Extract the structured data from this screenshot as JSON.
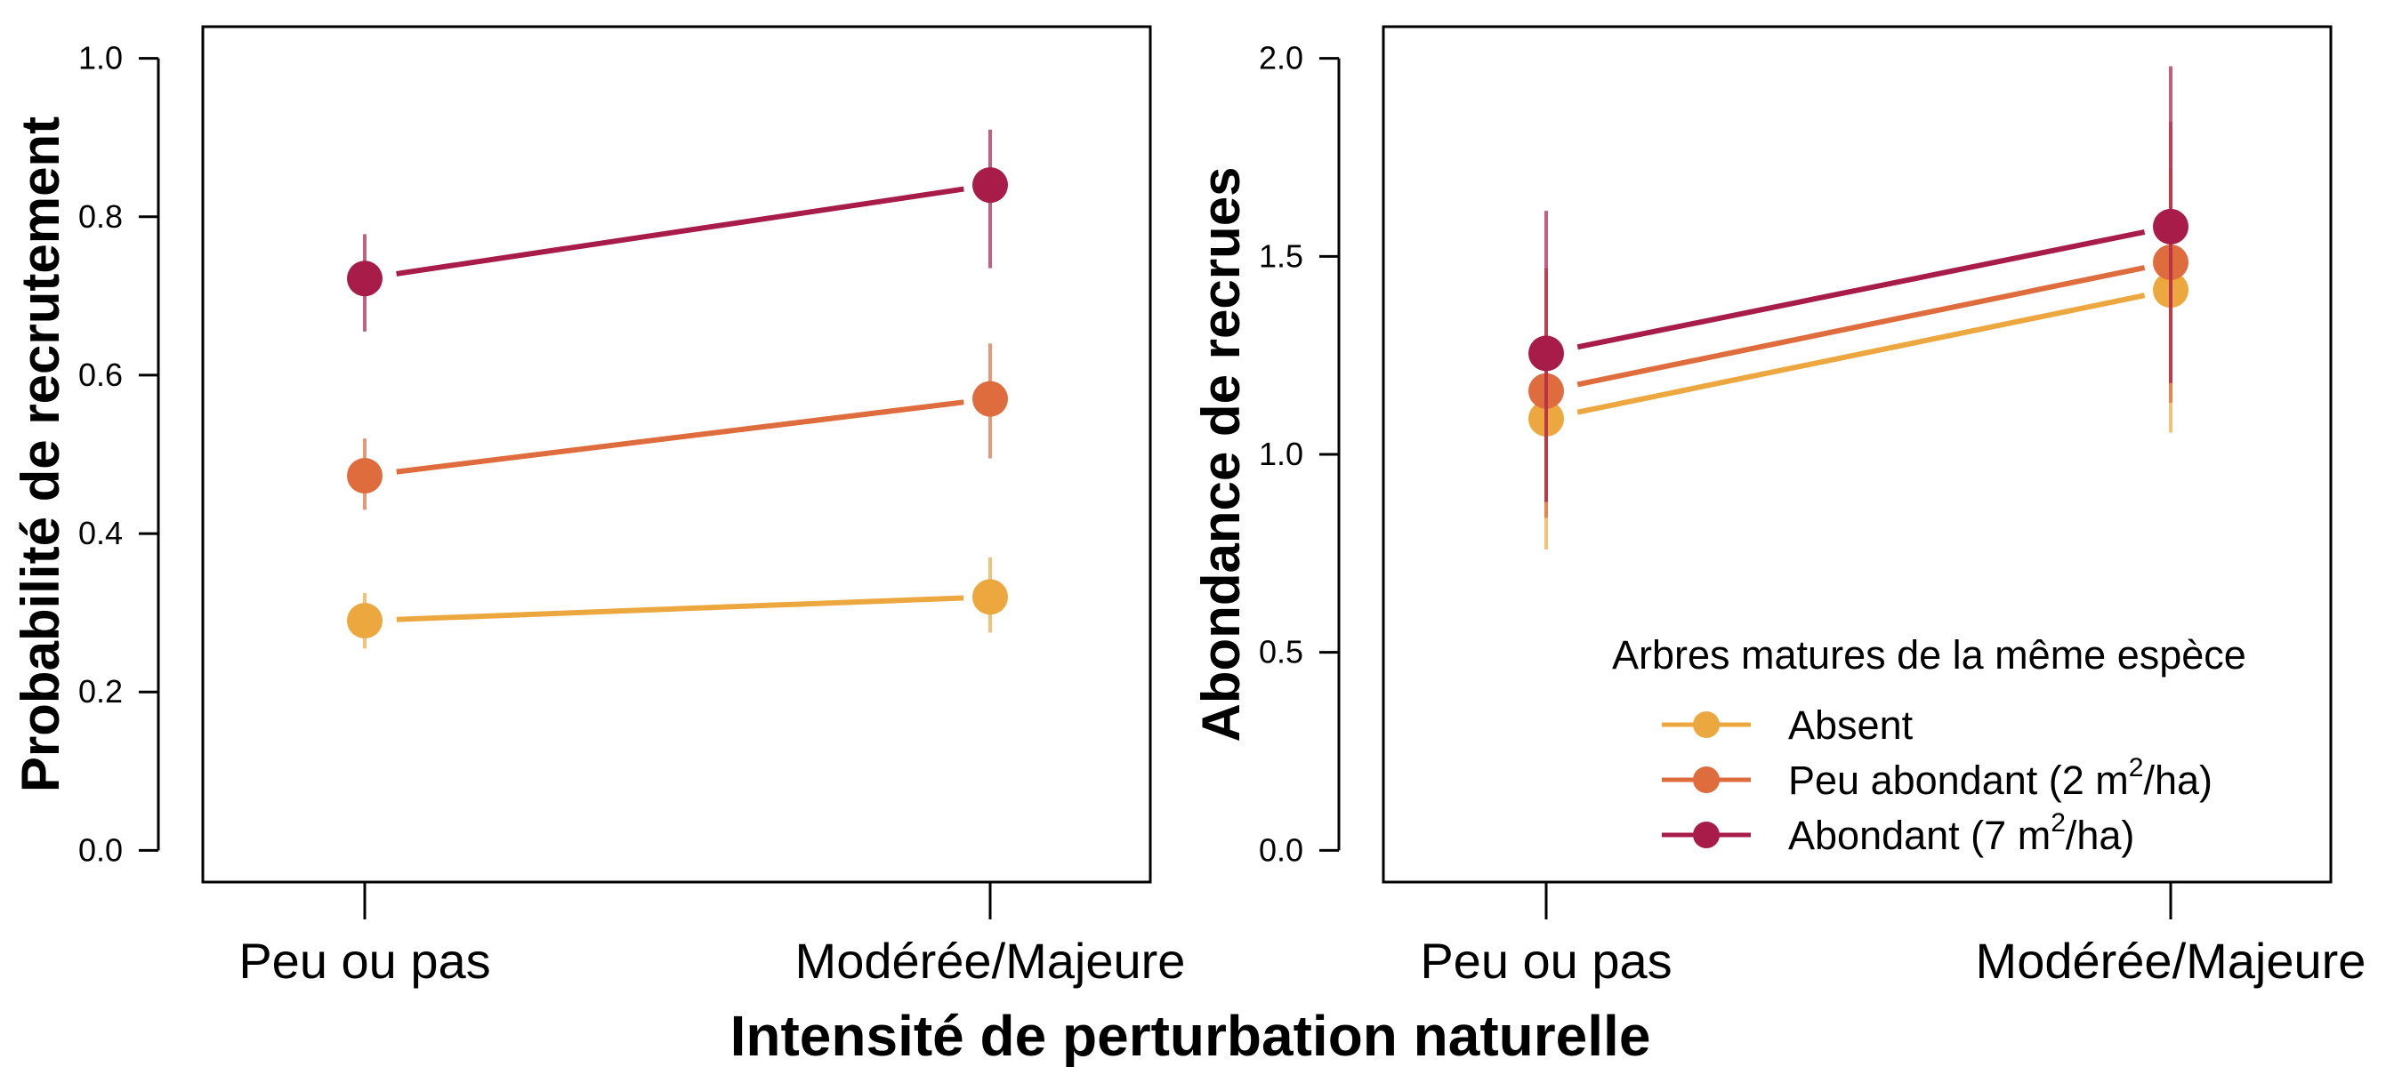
{
  "xlabel": "Intensité de perturbation naturelle",
  "legend": {
    "title": "Arbres matures de la même espèce",
    "placement": "bottom-right of right panel",
    "items": [
      {
        "key": "absent",
        "text": "Absent",
        "sup": "",
        "after": ""
      },
      {
        "key": "peu",
        "text": "Peu abondant (2 m",
        "sup": "2",
        "after": "/ha)"
      },
      {
        "key": "abondant",
        "text": "Abondant (7 m",
        "sup": "2",
        "after": "/ha)"
      }
    ]
  },
  "colors": {
    "absent": "#ECA83F",
    "peu": "#DE6C3D",
    "abondant": "#A81C4A"
  },
  "chart_data": [
    {
      "type": "line",
      "panel": "left",
      "ylabel": "Probabilité de recrutement",
      "categories": [
        "Peu ou pas",
        "Modérée/Majeure"
      ],
      "ylim": [
        -0.04,
        1.04
      ],
      "yticks": [
        "0.0",
        "0.2",
        "0.4",
        "0.6",
        "0.8",
        "1.0"
      ],
      "series": [
        {
          "key": "absent",
          "name": "Absent",
          "values": [
            0.29,
            0.32
          ],
          "lower": [
            0.255,
            0.275
          ],
          "upper": [
            0.325,
            0.37
          ]
        },
        {
          "key": "peu",
          "name": "Peu abondant (2 m2/ha)",
          "values": [
            0.473,
            0.57
          ],
          "lower": [
            0.43,
            0.495
          ],
          "upper": [
            0.52,
            0.64
          ]
        },
        {
          "key": "abondant",
          "name": "Abondant (7 m2/ha)",
          "values": [
            0.722,
            0.84
          ],
          "lower": [
            0.655,
            0.735
          ],
          "upper": [
            0.778,
            0.91
          ]
        }
      ]
    },
    {
      "type": "line",
      "panel": "right",
      "ylabel": "Abondance de recrues",
      "categories": [
        "Peu ou pas",
        "Modérée/Majeure"
      ],
      "ylim": [
        -0.08,
        2.08
      ],
      "yticks": [
        "0.0",
        "0.5",
        "1.0",
        "1.5",
        "2.0"
      ],
      "series": [
        {
          "key": "absent",
          "name": "Absent",
          "values": [
            1.09,
            1.415
          ],
          "lower": [
            0.76,
            1.055
          ],
          "upper": [
            1.3,
            1.72
          ]
        },
        {
          "key": "peu",
          "name": "Peu abondant (2 m2/ha)",
          "values": [
            1.16,
            1.485
          ],
          "lower": [
            0.84,
            1.13
          ],
          "upper": [
            1.47,
            1.84
          ]
        },
        {
          "key": "abondant",
          "name": "Abondant (7 m2/ha)",
          "values": [
            1.255,
            1.575
          ],
          "lower": [
            0.88,
            1.18
          ],
          "upper": [
            1.615,
            1.98
          ]
        }
      ]
    }
  ]
}
